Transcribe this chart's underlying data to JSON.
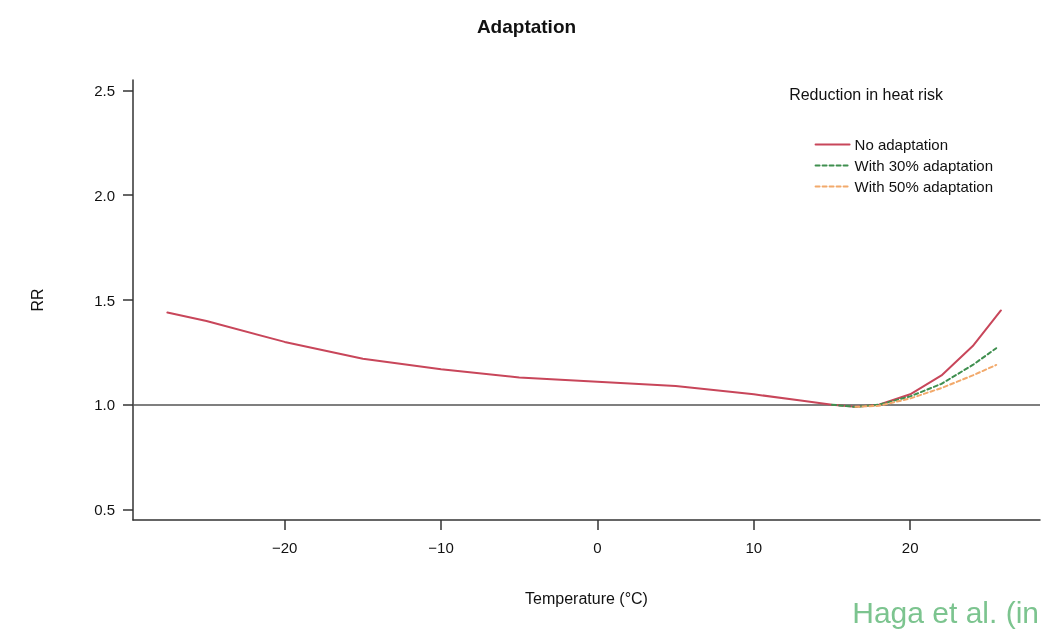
{
  "chart_data": {
    "type": "line",
    "title": "Adaptation",
    "xlabel": "Temperature (°C)",
    "ylabel": "RR",
    "legend_title": "Reduction in heat risk",
    "legend": "top right",
    "grid": false,
    "marker": "none",
    "xlim": [
      -29.7,
      28.3
    ],
    "xticks": [
      -20,
      -10,
      0,
      10,
      20
    ],
    "ylim": [
      0.45,
      2.55
    ],
    "yticks": [
      0.5,
      {
        "value": 1,
        "label": "1.0"
      },
      1.5,
      {
        "value": 2,
        "label": "2.0"
      },
      2.5
    ],
    "series": [
      {
        "name": "No adaptation",
        "color": "#c8465a",
        "line_style": "solid",
        "x": [
          -27.5,
          -25,
          -20,
          -15,
          -10,
          -5,
          0,
          5,
          10,
          13,
          15,
          16.5,
          18,
          20,
          22,
          24,
          25.8
        ],
        "values": [
          1.44,
          1.4,
          1.3,
          1.22,
          1.17,
          1.13,
          1.11,
          1.09,
          1.05,
          1.02,
          1.0,
          0.99,
          1.0,
          1.05,
          1.14,
          1.28,
          1.45
        ]
      },
      {
        "name": "With 30% adaptation",
        "color": "#3f8f4f",
        "line_style": "dashed",
        "x": [
          15,
          16.5,
          18,
          20,
          22,
          24,
          25.5
        ],
        "values": [
          1.0,
          0.99,
          1.0,
          1.04,
          1.1,
          1.19,
          1.27
        ]
      },
      {
        "name": "With 50% adaptation",
        "color": "#f2a96b",
        "line_style": "dashed",
        "x": [
          16.5,
          18,
          20,
          22,
          24,
          25.5
        ],
        "values": [
          0.99,
          0.995,
          1.03,
          1.08,
          1.14,
          1.19
        ]
      }
    ],
    "ref_lines": [
      {
        "axis": "y",
        "value": 1.0,
        "color": "#555555",
        "line_style": "solid"
      }
    ],
    "annotations": [
      "Haga et al. (in"
    ]
  }
}
